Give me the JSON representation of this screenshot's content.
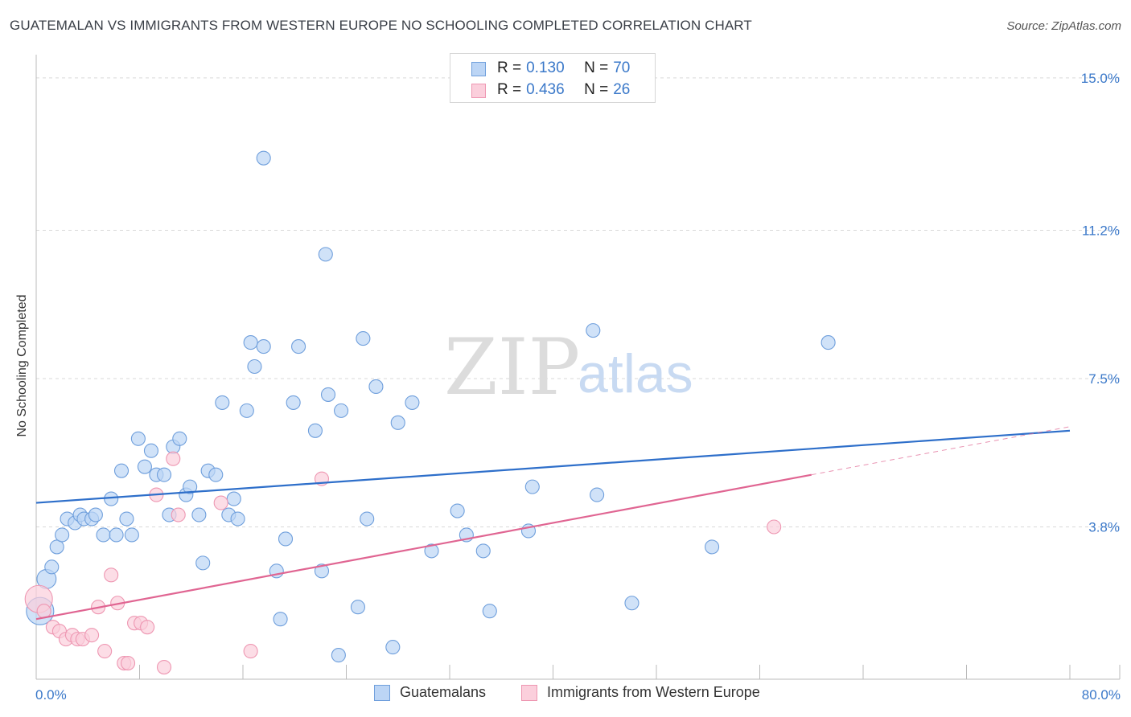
{
  "header": {
    "title": "GUATEMALAN VS IMMIGRANTS FROM WESTERN EUROPE NO SCHOOLING COMPLETED CORRELATION CHART",
    "source": "Source: ZipAtlas.com"
  },
  "watermark": {
    "zip": "ZIP",
    "atlas": "atlas"
  },
  "legend": {
    "r_label": "R =",
    "n_label": "N =",
    "rows": [
      {
        "r": "0.130",
        "n": "70",
        "color": "#bcd5f5",
        "border": "#6f9fdc"
      },
      {
        "r": "0.436",
        "n": "26",
        "color": "#fbcfdc",
        "border": "#ee97b2"
      }
    ]
  },
  "bottom_legend": [
    {
      "label": "Guatemalans",
      "color": "#bcd5f5",
      "border": "#6f9fdc"
    },
    {
      "label": "Immigrants from Western Europe",
      "color": "#fbcfdc",
      "border": "#ee97b2"
    }
  ],
  "chart_data": {
    "type": "scatter",
    "ylabel": "No Schooling Completed",
    "xlim": [
      0,
      80
    ],
    "ylim": [
      0,
      15.5
    ],
    "x_tick_labels": [
      {
        "value": 0,
        "label": "0.0%"
      },
      {
        "value": 80,
        "label": "80.0%"
      }
    ],
    "y_ticks": [
      {
        "value": 3.8,
        "label": "3.8%"
      },
      {
        "value": 7.5,
        "label": "7.5%"
      },
      {
        "value": 11.2,
        "label": "11.2%"
      },
      {
        "value": 15.0,
        "label": "15.0%"
      }
    ],
    "x_minor_ticks": [
      0,
      8,
      16,
      24,
      32,
      40,
      48,
      56,
      64,
      72,
      80
    ],
    "grid": "horizontal-dashed",
    "legend_position": "top-center",
    "series": [
      {
        "name": "Guatemalans",
        "color": "#6f9fdc",
        "fill": "#bcd5f5",
        "trend": {
          "x": [
            0,
            80
          ],
          "y": [
            4.4,
            6.2
          ],
          "color": "#2e6fca"
        },
        "points": [
          [
            0.3,
            1.7,
            2
          ],
          [
            0.8,
            2.5,
            1.4
          ],
          [
            1.2,
            2.8,
            1
          ],
          [
            1.6,
            3.3,
            1
          ],
          [
            2.0,
            3.6,
            1
          ],
          [
            2.4,
            4.0,
            1
          ],
          [
            3.0,
            3.9,
            1
          ],
          [
            3.4,
            4.1,
            1
          ],
          [
            3.7,
            4.0,
            1
          ],
          [
            4.3,
            4.0,
            1
          ],
          [
            4.6,
            4.1,
            1
          ],
          [
            5.2,
            3.6,
            1
          ],
          [
            5.8,
            4.5,
            1
          ],
          [
            6.2,
            3.6,
            1
          ],
          [
            6.6,
            5.2,
            1
          ],
          [
            7.0,
            4.0,
            1
          ],
          [
            7.4,
            3.6,
            1
          ],
          [
            7.9,
            6.0,
            1
          ],
          [
            8.4,
            5.3,
            1
          ],
          [
            8.9,
            5.7,
            1
          ],
          [
            9.3,
            5.1,
            1
          ],
          [
            9.9,
            5.1,
            1
          ],
          [
            10.3,
            4.1,
            1
          ],
          [
            10.6,
            5.8,
            1
          ],
          [
            11.1,
            6.0,
            1
          ],
          [
            11.6,
            4.6,
            1
          ],
          [
            11.9,
            4.8,
            1
          ],
          [
            12.6,
            4.1,
            1
          ],
          [
            12.9,
            2.9,
            1
          ],
          [
            13.3,
            5.2,
            1
          ],
          [
            13.9,
            5.1,
            1
          ],
          [
            14.4,
            6.9,
            1
          ],
          [
            14.9,
            4.1,
            1
          ],
          [
            15.3,
            4.5,
            1
          ],
          [
            15.6,
            4.0,
            1
          ],
          [
            16.3,
            6.7,
            1
          ],
          [
            16.6,
            8.4,
            1
          ],
          [
            16.9,
            7.8,
            1
          ],
          [
            17.6,
            8.3,
            1
          ],
          [
            17.6,
            13.0,
            1
          ],
          [
            18.6,
            2.7,
            1
          ],
          [
            18.9,
            1.5,
            1
          ],
          [
            19.3,
            3.5,
            1
          ],
          [
            19.9,
            6.9,
            1
          ],
          [
            20.3,
            8.3,
            1
          ],
          [
            21.6,
            6.2,
            1
          ],
          [
            22.1,
            2.7,
            1
          ],
          [
            22.4,
            10.6,
            1
          ],
          [
            22.6,
            7.1,
            1
          ],
          [
            23.4,
            0.6,
            1
          ],
          [
            23.6,
            6.7,
            1
          ],
          [
            24.9,
            1.8,
            1
          ],
          [
            25.3,
            8.5,
            1
          ],
          [
            25.6,
            4.0,
            1
          ],
          [
            26.3,
            7.3,
            1
          ],
          [
            27.6,
            0.8,
            1
          ],
          [
            28.0,
            6.4,
            1
          ],
          [
            29.1,
            6.9,
            1
          ],
          [
            30.6,
            3.2,
            1
          ],
          [
            32.6,
            4.2,
            1
          ],
          [
            33.3,
            3.6,
            1
          ],
          [
            34.6,
            3.2,
            1
          ],
          [
            35.1,
            1.7,
            1
          ],
          [
            38.1,
            3.7,
            1
          ],
          [
            38.4,
            4.8,
            1
          ],
          [
            43.1,
            8.7,
            1
          ],
          [
            43.4,
            4.6,
            1
          ],
          [
            46.1,
            1.9,
            1
          ],
          [
            52.3,
            3.3,
            1
          ],
          [
            61.3,
            8.4,
            1
          ]
        ]
      },
      {
        "name": "Immigrants from Western Europe",
        "color": "#ee97b2",
        "fill": "#fbcfdc",
        "trend": {
          "x": [
            0,
            60
          ],
          "y": [
            1.5,
            5.1
          ],
          "dash_x": [
            60,
            80
          ],
          "dash_y": [
            5.1,
            6.3
          ],
          "color": "#e06592"
        },
        "points": [
          [
            0.2,
            2.0,
            2
          ],
          [
            0.6,
            1.7,
            1
          ],
          [
            1.3,
            1.3,
            1
          ],
          [
            1.8,
            1.2,
            1
          ],
          [
            2.3,
            1.0,
            1
          ],
          [
            2.8,
            1.1,
            1
          ],
          [
            3.2,
            1.0,
            1
          ],
          [
            3.6,
            1.0,
            1
          ],
          [
            4.3,
            1.1,
            1
          ],
          [
            4.8,
            1.8,
            1
          ],
          [
            5.3,
            0.7,
            1
          ],
          [
            5.8,
            2.6,
            1
          ],
          [
            6.3,
            1.9,
            1
          ],
          [
            6.8,
            0.4,
            1
          ],
          [
            7.1,
            0.4,
            1
          ],
          [
            7.6,
            1.4,
            1
          ],
          [
            8.1,
            1.4,
            1
          ],
          [
            8.6,
            1.3,
            1
          ],
          [
            9.3,
            4.6,
            1
          ],
          [
            9.9,
            0.3,
            1
          ],
          [
            10.6,
            5.5,
            1
          ],
          [
            11.0,
            4.1,
            1
          ],
          [
            14.3,
            4.4,
            1
          ],
          [
            16.6,
            0.7,
            1
          ],
          [
            22.1,
            5.0,
            1
          ],
          [
            57.1,
            3.8,
            1
          ]
        ]
      }
    ]
  }
}
